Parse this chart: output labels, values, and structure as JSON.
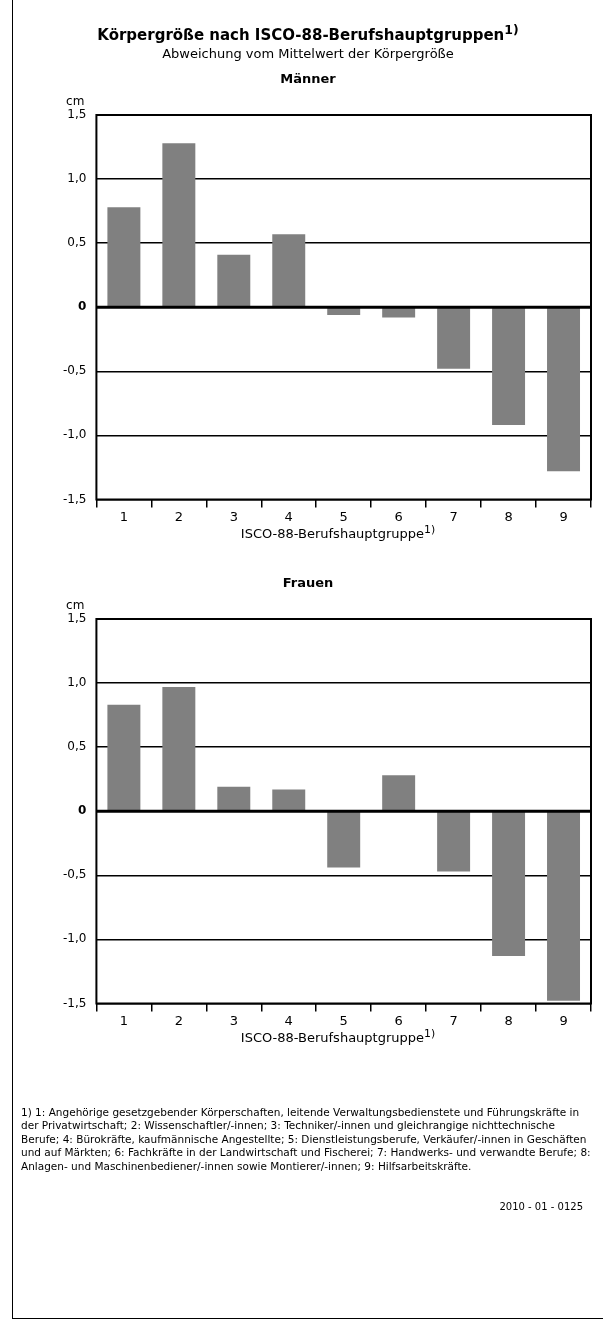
{
  "chart_data": [
    {
      "type": "other",
      "title": "Körpergröße nach ISCO-88-Berufshauptgruppen$^{1)}$",
      "subtitle": "Abweichung vom Mittelwert der Körpergröße"
    },
    {
      "type": "bar",
      "title": "Männer",
      "ylabel": "cm",
      "xlabel": "ISCO-88-Berufshauptgruppe$^{1)}$",
      "categories": [
        "1",
        "2",
        "3",
        "4",
        "5",
        "6",
        "7",
        "8",
        "9"
      ],
      "values": [
        0.78,
        1.28,
        0.41,
        0.57,
        -0.06,
        -0.08,
        -0.48,
        -0.92,
        -1.28
      ],
      "color": "#808080",
      "ylim": [
        -1.5,
        1.5
      ],
      "yticks": [
        {
          "value": -1.5,
          "label": "-1,5"
        },
        {
          "value": -1,
          "label": "-1,0"
        },
        {
          "value": -0.5,
          "label": "-0,5"
        },
        0,
        {
          "value": 0.5,
          "label": "0,5"
        },
        {
          "value": 1,
          "label": "1,0"
        },
        {
          "value": 1.5,
          "label": "1,5"
        }
      ],
      "grid": "y"
    },
    {
      "type": "bar",
      "title": "Frauen",
      "ylabel": "cm",
      "xlabel": "ISCO-88-Berufshauptgruppe$^{1)}$",
      "categories": [
        "1",
        "2",
        "3",
        "4",
        "5",
        "6",
        "7",
        "8",
        "9"
      ],
      "values": [
        0.83,
        0.97,
        0.19,
        0.17,
        -0.44,
        0.28,
        -0.47,
        -1.13,
        -1.48
      ],
      "color": "#808080",
      "ylim": [
        -1.5,
        1.5
      ],
      "yticks": [
        {
          "value": -1.5,
          "label": "-1,5"
        },
        {
          "value": -1,
          "label": "-1,0"
        },
        {
          "value": -0.5,
          "label": "-0,5"
        },
        0,
        {
          "value": 0.5,
          "label": "0,5"
        },
        {
          "value": 1,
          "label": "1,0"
        },
        {
          "value": 1.5,
          "label": "1,5"
        }
      ],
      "grid": "y",
      "annotations": [
        "1) 1: Angehörige gesetzgebender Körperschaften, leitende Verwaltungsbedienstete und Führungskräfte in der Privatwirtschaft; 2: Wissenschaftler/-innen; 3: Techniker/-innen und gleichrangige nichttechnische Berufe; 4: Bürokräfte, kaufmännische Angestellte; 5: Dienstleistungsberufe, Verkäufer/-innen in Geschäften und auf Märkten; 6: Fachkräfte in der Landwirtschaft und Fischerei; 7: Handwerks- und verwandte Berufe; 8: Anlagen- und Maschinenbediener/-innen sowie Montierer/-innen; 9: Hilfsarbeitskräfte.",
        "2010 - 01 - 0125"
      ]
    }
  ]
}
